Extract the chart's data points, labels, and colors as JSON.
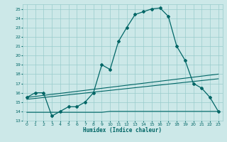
{
  "xlabel": "Humidex (Indice chaleur)",
  "x_ticks": [
    0,
    1,
    2,
    3,
    4,
    5,
    6,
    7,
    8,
    9,
    10,
    11,
    12,
    13,
    14,
    15,
    16,
    17,
    18,
    19,
    20,
    21,
    22,
    23
  ],
  "ylim": [
    13,
    25.5
  ],
  "xlim": [
    -0.5,
    23.5
  ],
  "yticks": [
    13,
    14,
    15,
    16,
    17,
    18,
    19,
    20,
    21,
    22,
    23,
    24,
    25
  ],
  "bg_color": "#cce8e8",
  "grid_color": "#99cccc",
  "line_color": "#006666",
  "curves": {
    "main": {
      "x": [
        0,
        1,
        2,
        3,
        4,
        5,
        6,
        7,
        8,
        9,
        10,
        11,
        12,
        13,
        14,
        15,
        16,
        17,
        18,
        19,
        20,
        21,
        22,
        23
      ],
      "y": [
        15.5,
        16.0,
        16.0,
        13.5,
        14.0,
        14.5,
        14.5,
        15.0,
        16.0,
        19.0,
        18.5,
        21.5,
        23.0,
        24.4,
        24.7,
        25.0,
        25.1,
        24.2,
        21.0,
        19.5,
        17.0,
        16.5,
        15.5,
        14.0
      ],
      "marker": "D",
      "markersize": 2.0
    },
    "upper_band": {
      "x": [
        0,
        23
      ],
      "y": [
        15.5,
        18.0
      ]
    },
    "lower_band": {
      "x": [
        0,
        23
      ],
      "y": [
        15.3,
        17.5
      ]
    },
    "bottom_band": {
      "x": [
        0,
        9,
        10,
        22,
        23
      ],
      "y": [
        13.9,
        13.9,
        14.0,
        14.0,
        14.0
      ]
    }
  }
}
